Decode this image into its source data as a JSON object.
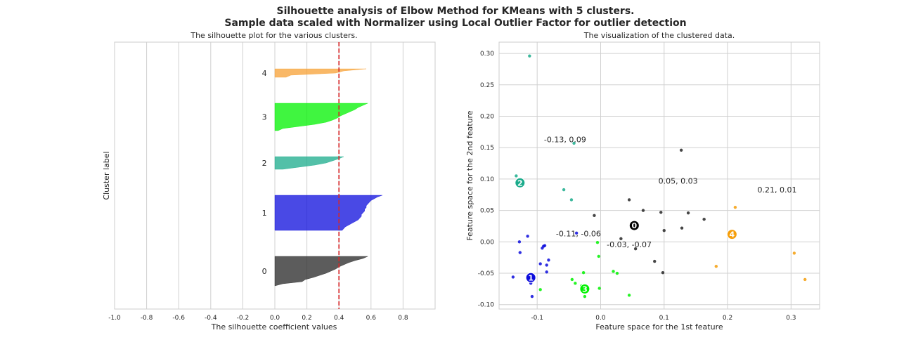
{
  "figure": {
    "suptitle_line1": "Silhouette analysis of Elbow Method for KMeans with 5 clusters.",
    "suptitle_line2": "Sample data scaled with Normalizer using Local Outlier Factor for outlier detection"
  },
  "chart_data": [
    {
      "type": "area",
      "title": "The silhouette plot for the various clusters.",
      "xlabel": "The silhouette coefficient values",
      "ylabel": "Cluster label",
      "xlim": [
        -1.0,
        1.0
      ],
      "xticks": [
        "-1.0",
        "-0.8",
        "-0.6",
        "-0.4",
        "-0.2",
        "0.0",
        "0.2",
        "0.4",
        "0.6",
        "0.8"
      ],
      "grid": true,
      "average_silhouette": 0.4,
      "average_line_color": "#d62728",
      "clusters": [
        {
          "label": "0",
          "color": "#262626",
          "max": 0.58,
          "profile": [
            0.58,
            0.55,
            0.5,
            0.46,
            0.43,
            0.4,
            0.38,
            0.35,
            0.32,
            0.28,
            0.24,
            0.19,
            0.17,
            0.05,
            0.0
          ]
        },
        {
          "label": "1",
          "color": "#0c0cdc",
          "max": 0.67,
          "profile": [
            0.67,
            0.64,
            0.62,
            0.6,
            0.59,
            0.58,
            0.57,
            0.57,
            0.56,
            0.56,
            0.55,
            0.54,
            0.54,
            0.53,
            0.52,
            0.5,
            0.48,
            0.46,
            0.44,
            0.43,
            0.42
          ]
        },
        {
          "label": "2",
          "color": "#1aab8b",
          "max": 0.43,
          "profile": [
            0.43,
            0.4,
            0.36,
            0.32,
            0.25,
            0.15,
            0.05
          ]
        },
        {
          "label": "3",
          "color": "#00f200",
          "max": 0.58,
          "profile": [
            0.58,
            0.55,
            0.52,
            0.5,
            0.47,
            0.44,
            0.41,
            0.39,
            0.36,
            0.32,
            0.25,
            0.15,
            0.05,
            0.02
          ]
        },
        {
          "label": "4",
          "color": "#f7a034",
          "max": 0.57,
          "profile": [
            0.57,
            0.43,
            0.38,
            0.1,
            0.07
          ]
        }
      ]
    },
    {
      "type": "scatter",
      "title": "The visualization of the clustered data.",
      "xlabel": "Feature space for the 1st feature",
      "ylabel": "Feature space for the 2nd feature",
      "xlim": [
        -0.16,
        0.345
      ],
      "ylim": [
        -0.107,
        0.318
      ],
      "xticks": [
        "-0.1",
        "0.0",
        "0.1",
        "0.2",
        "0.3"
      ],
      "yticks": [
        "-0.10",
        "-0.05",
        "0.00",
        "0.05",
        "0.10",
        "0.15",
        "0.20",
        "0.25",
        "0.30"
      ],
      "grid": true,
      "series": [
        {
          "cluster": "0",
          "color": "#262626",
          "points": [
            [
              0.127,
              0.146
            ],
            [
              0.045,
              0.067
            ],
            [
              0.067,
              0.05
            ],
            [
              0.095,
              0.047
            ],
            [
              0.138,
              0.046
            ],
            [
              0.163,
              0.036
            ],
            [
              -0.01,
              0.042
            ],
            [
              0.1,
              0.018
            ],
            [
              0.128,
              0.022
            ],
            [
              0.032,
              0.005
            ],
            [
              0.055,
              -0.011
            ],
            [
              0.085,
              -0.031
            ],
            [
              0.098,
              -0.049
            ]
          ]
        },
        {
          "cluster": "1",
          "color": "#0c0cdc",
          "points": [
            [
              -0.115,
              0.009
            ],
            [
              -0.128,
              0.0
            ],
            [
              -0.127,
              -0.017
            ],
            [
              -0.09,
              -0.007
            ],
            [
              -0.092,
              -0.01
            ],
            [
              -0.088,
              -0.006
            ],
            [
              -0.082,
              -0.029
            ],
            [
              -0.085,
              -0.037
            ],
            [
              -0.095,
              -0.035
            ],
            [
              -0.085,
              -0.048
            ],
            [
              -0.138,
              -0.056
            ],
            [
              -0.11,
              -0.066
            ],
            [
              -0.108,
              -0.087
            ],
            [
              -0.038,
              0.014
            ]
          ]
        },
        {
          "cluster": "2",
          "color": "#1aab8b",
          "points": [
            [
              -0.112,
              0.296
            ],
            [
              -0.042,
              0.157
            ],
            [
              -0.133,
              0.105
            ],
            [
              -0.058,
              0.083
            ],
            [
              -0.046,
              0.067
            ]
          ]
        },
        {
          "cluster": "3",
          "color": "#00f200",
          "points": [
            [
              -0.005,
              -0.001
            ],
            [
              -0.003,
              -0.023
            ],
            [
              -0.027,
              -0.049
            ],
            [
              -0.045,
              -0.06
            ],
            [
              -0.04,
              -0.066
            ],
            [
              -0.03,
              -0.07
            ],
            [
              -0.095,
              -0.076
            ],
            [
              -0.025,
              -0.087
            ],
            [
              0.02,
              -0.047
            ],
            [
              0.026,
              -0.05
            ],
            [
              0.045,
              -0.085
            ],
            [
              -0.002,
              -0.074
            ]
          ]
        },
        {
          "cluster": "4",
          "color": "#f59e0b",
          "points": [
            [
              0.212,
              0.055
            ],
            [
              0.182,
              -0.039
            ],
            [
              0.305,
              -0.018
            ],
            [
              0.322,
              -0.06
            ]
          ]
        }
      ],
      "centers": [
        {
          "label": "0",
          "x": 0.053,
          "y": 0.026,
          "color": "#000000"
        },
        {
          "label": "1",
          "x": -0.11,
          "y": -0.057,
          "color": "#0c0cdc"
        },
        {
          "label": "2",
          "x": -0.127,
          "y": 0.094,
          "color": "#1aab8b"
        },
        {
          "label": "3",
          "x": -0.025,
          "y": -0.075,
          "color": "#00f200"
        },
        {
          "label": "4",
          "x": 0.207,
          "y": 0.012,
          "color": "#f59e0b"
        }
      ],
      "annotations": [
        {
          "text": "-0.13, 0.09",
          "x": -0.056,
          "y": 0.163
        },
        {
          "text": "0.05, 0.03",
          "x": 0.122,
          "y": 0.097
        },
        {
          "text": "0.21, 0.01",
          "x": 0.278,
          "y": 0.083
        },
        {
          "text": "-0.11, -0.06",
          "x": -0.035,
          "y": 0.013
        },
        {
          "text": "-0.03, -0.07",
          "x": 0.045,
          "y": -0.004
        }
      ]
    }
  ]
}
